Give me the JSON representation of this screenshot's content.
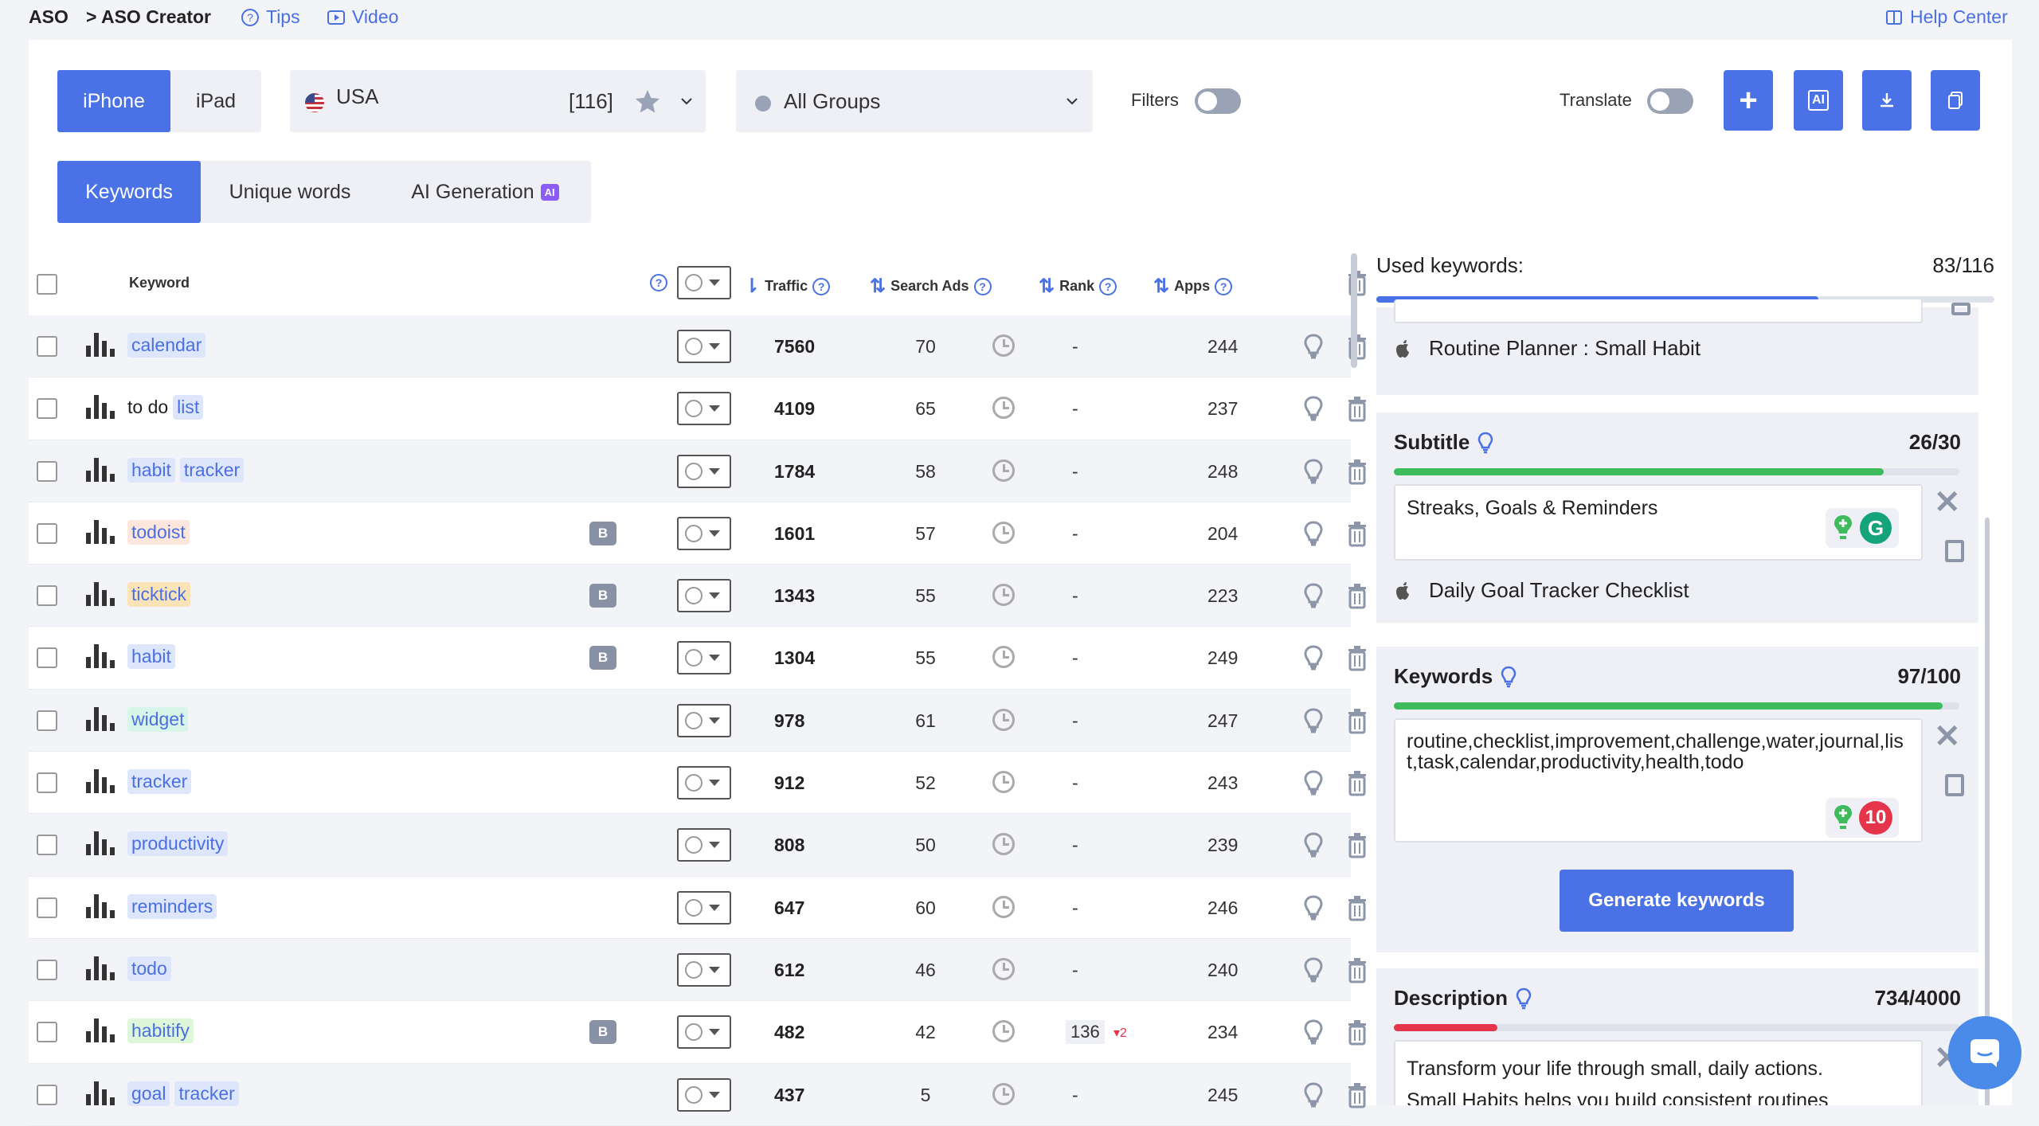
{
  "breadcrumb": {
    "root": "ASO",
    "current": "> ASO Creator"
  },
  "top_links": {
    "tips": "Tips",
    "video": "Video",
    "help": "Help Center"
  },
  "device_tabs": [
    {
      "label": "iPhone",
      "active": true
    },
    {
      "label": "iPad",
      "active": false
    }
  ],
  "country": {
    "name": "USA",
    "count": "[116]"
  },
  "groups": {
    "label": "All Groups"
  },
  "filters_label": "Filters",
  "translate_label": "Translate",
  "action_buttons": {
    "add": "+",
    "ai": "AI"
  },
  "view_tabs": [
    {
      "label": "Keywords",
      "active": true
    },
    {
      "label": "Unique words",
      "active": false
    },
    {
      "label": "AI Generation",
      "active": false,
      "badge": "AI"
    }
  ],
  "table": {
    "headers": {
      "keyword": "Keyword",
      "traffic": "Traffic",
      "search_ads": "Search Ads",
      "rank": "Rank",
      "apps": "Apps"
    },
    "rows": [
      {
        "parts": [
          {
            "t": "calendar",
            "chip": "#dde6fb"
          }
        ],
        "b": false,
        "traffic": "7560",
        "ads": "70",
        "rank": "-",
        "apps": "244"
      },
      {
        "parts": [
          {
            "t": "to do",
            "chip": ""
          },
          {
            "t": "list",
            "chip": "#dde6fb"
          }
        ],
        "b": false,
        "traffic": "4109",
        "ads": "65",
        "rank": "-",
        "apps": "237"
      },
      {
        "parts": [
          {
            "t": "habit",
            "chip": "#dde6fb"
          },
          {
            "t": "tracker",
            "chip": "#dde6fb"
          }
        ],
        "b": false,
        "traffic": "1784",
        "ads": "58",
        "rank": "-",
        "apps": "248"
      },
      {
        "parts": [
          {
            "t": "todoist",
            "chip": "#fde6dc"
          }
        ],
        "b": true,
        "traffic": "1601",
        "ads": "57",
        "rank": "-",
        "apps": "204"
      },
      {
        "parts": [
          {
            "t": "ticktick",
            "chip": "#fbe3b8"
          }
        ],
        "b": true,
        "traffic": "1343",
        "ads": "55",
        "rank": "-",
        "apps": "223"
      },
      {
        "parts": [
          {
            "t": "habit",
            "chip": "#dde6fb"
          }
        ],
        "b": true,
        "traffic": "1304",
        "ads": "55",
        "rank": "-",
        "apps": "249"
      },
      {
        "parts": [
          {
            "t": "widget",
            "chip": "#d7f6e9"
          }
        ],
        "b": false,
        "traffic": "978",
        "ads": "61",
        "rank": "-",
        "apps": "247"
      },
      {
        "parts": [
          {
            "t": "tracker",
            "chip": "#dde6fb"
          }
        ],
        "b": false,
        "traffic": "912",
        "ads": "52",
        "rank": "-",
        "apps": "243"
      },
      {
        "parts": [
          {
            "t": "productivity",
            "chip": "#dde6fb"
          }
        ],
        "b": false,
        "traffic": "808",
        "ads": "50",
        "rank": "-",
        "apps": "239"
      },
      {
        "parts": [
          {
            "t": "reminders",
            "chip": "#dde6fb"
          }
        ],
        "b": false,
        "traffic": "647",
        "ads": "60",
        "rank": "-",
        "apps": "246"
      },
      {
        "parts": [
          {
            "t": "todo",
            "chip": "#dde6fb"
          }
        ],
        "b": false,
        "traffic": "612",
        "ads": "46",
        "rank": "-",
        "apps": "240"
      },
      {
        "parts": [
          {
            "t": "habitify",
            "chip": "#ddf7d8"
          }
        ],
        "b": true,
        "traffic": "482",
        "ads": "42",
        "rank": "136",
        "rank_delta": "▾2",
        "apps": "234"
      },
      {
        "parts": [
          {
            "t": "goal",
            "chip": "#dde6fb"
          },
          {
            "t": "tracker",
            "chip": "#dde6fb"
          }
        ],
        "b": false,
        "traffic": "437",
        "ads": "5",
        "rank": "-",
        "apps": "245"
      }
    ]
  },
  "used_keywords": {
    "label": "Used keywords:",
    "count": "83/116",
    "fraction": 0.7155
  },
  "title_app_name": "Routine Planner : Small Habit",
  "subtitle": {
    "label": "Subtitle",
    "count": "26/30",
    "fraction": 0.8667,
    "value": "Streaks, Goals & Reminders",
    "app_name": "Daily Goal Tracker Checklist"
  },
  "keywords": {
    "label": "Keywords",
    "count": "97/100",
    "fraction": 0.97,
    "value": "routine,checklist,improvement,challenge,water,journal,list,task,calendar,productivity,health,todo",
    "badge": "10",
    "generate": "Generate keywords"
  },
  "description": {
    "label": "Description",
    "count": "734/4000",
    "fraction": 0.1835,
    "value": "Transform your life through small, daily actions.",
    "value2": "Small Habits helps you build consistent routines"
  },
  "colors": {
    "accent": "#4a72e6",
    "green": "#3fba5c",
    "red": "#e4354b"
  }
}
